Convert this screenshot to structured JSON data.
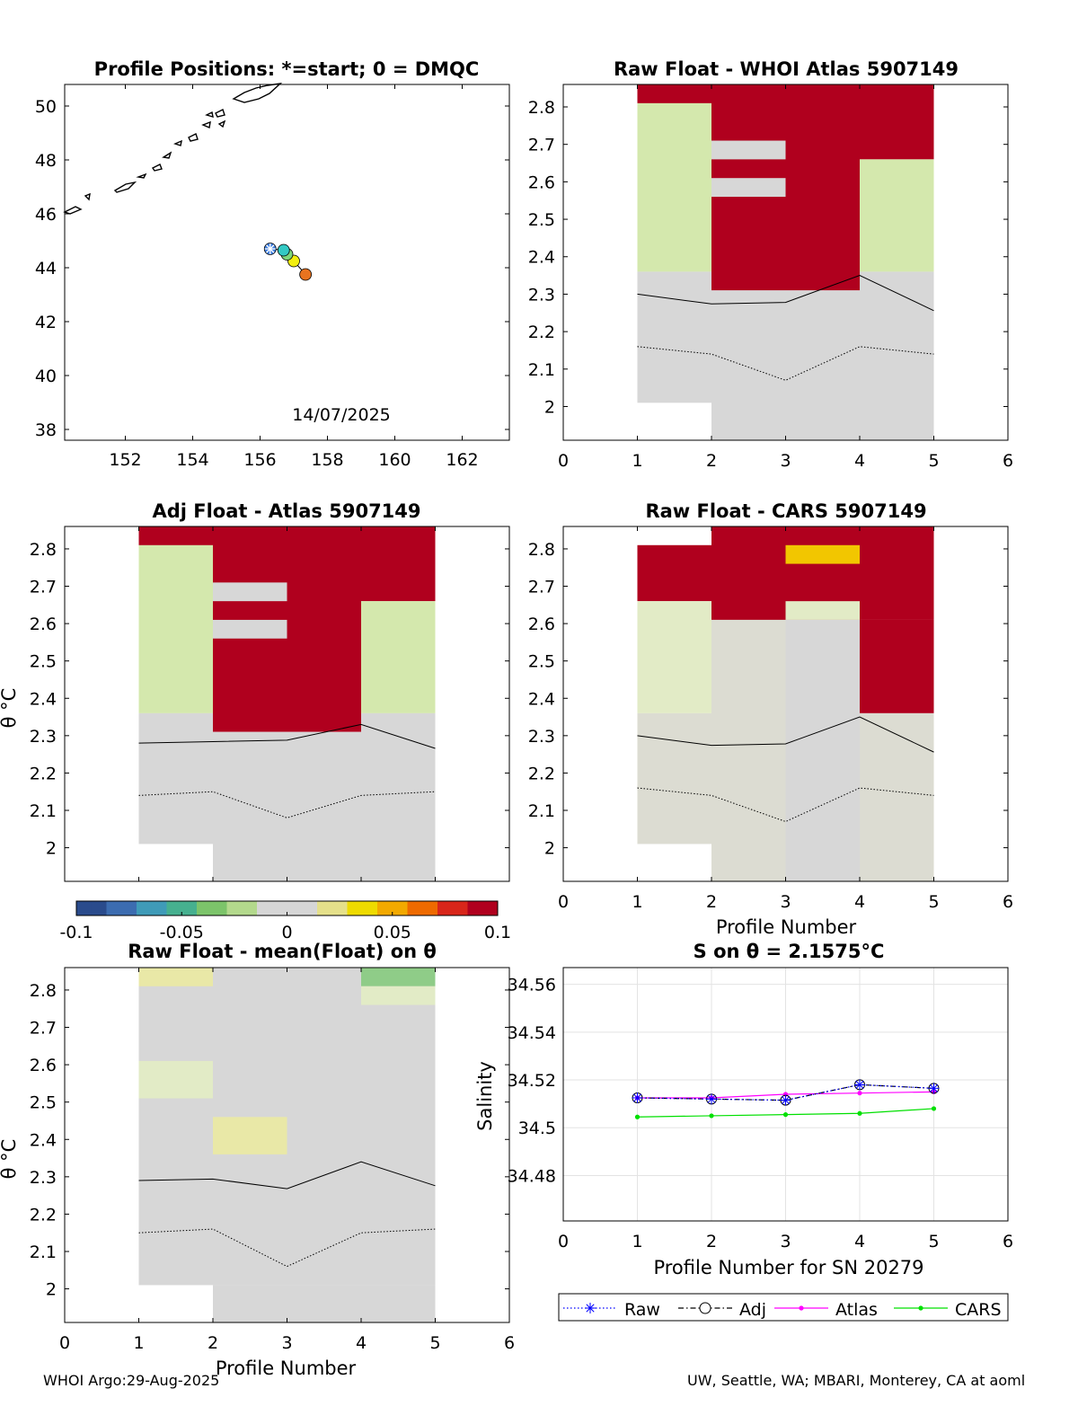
{
  "figure": {
    "footer_left": "WHOI Argo:29-Aug-2025",
    "footer_right": "UW, Seattle, WA; MBARI, Monterey, CA at aoml"
  },
  "colors": {
    "red": "#B0001E",
    "grey": "#D7D7D7",
    "lightgreen": "#D4E8AD",
    "paler": "#E2EBC6",
    "yellow": "#E9E8A7",
    "midgreen": "#8FCC88",
    "orange_yellow": "#F2C600",
    "beige": "#DCDCD2"
  },
  "chart_data": [
    {
      "id": "map",
      "type": "scatter",
      "title": "Profile Positions: *=start; 0 = DMQC",
      "xlim": [
        150.2,
        163.4
      ],
      "ylim": [
        37.6,
        50.8
      ],
      "xticks": [
        152,
        154,
        156,
        158,
        160,
        162
      ],
      "yticks": [
        38,
        40,
        42,
        44,
        46,
        48,
        50
      ],
      "annotation": "14/07/2025",
      "points": [
        {
          "lon": 156.3,
          "lat": 44.7,
          "color": "#3F7FE0",
          "marker": "star"
        },
        {
          "lon": 156.7,
          "lat": 44.65,
          "color": "#33C9C4",
          "marker": "circle"
        },
        {
          "lon": 156.8,
          "lat": 44.5,
          "color": "#7ED67A",
          "marker": "circle"
        },
        {
          "lon": 157.0,
          "lat": 44.25,
          "color": "#F2EE10",
          "marker": "circle"
        },
        {
          "lon": 157.35,
          "lat": 43.75,
          "color": "#E8731F",
          "marker": "circle"
        }
      ]
    },
    {
      "id": "raw_whoi",
      "type": "heatmap",
      "title": "Raw Float - WHOI Atlas  5907149",
      "xlim": [
        0,
        6
      ],
      "ylim": [
        1.91,
        2.86
      ],
      "xticks": [
        0,
        1,
        2,
        3,
        4,
        5,
        6
      ],
      "yticks": [
        "2",
        "2.1",
        "2.2",
        "2.3",
        "2.4",
        "2.5",
        "2.6",
        "2.7",
        "2.8"
      ],
      "cells": [
        {
          "x": [
            1,
            2
          ],
          "y": [
            2.76,
            2.86
          ],
          "c": "red"
        },
        {
          "x": [
            1,
            2
          ],
          "y": [
            2.36,
            2.81
          ],
          "c": "lightgreen"
        },
        {
          "x": [
            1,
            2
          ],
          "y": [
            2.01,
            2.36
          ],
          "c": "grey"
        },
        {
          "x": [
            2,
            4
          ],
          "y": [
            2.31,
            2.86
          ],
          "c": "red"
        },
        {
          "x": [
            2,
            3
          ],
          "y": [
            2.66,
            2.71
          ],
          "c": "grey"
        },
        {
          "x": [
            2,
            3
          ],
          "y": [
            2.56,
            2.61
          ],
          "c": "grey"
        },
        {
          "x": [
            2,
            4
          ],
          "y": [
            1.91,
            2.31
          ],
          "c": "grey"
        },
        {
          "x": [
            4,
            5
          ],
          "y": [
            2.66,
            2.86
          ],
          "c": "red"
        },
        {
          "x": [
            4,
            5
          ],
          "y": [
            2.36,
            2.66
          ],
          "c": "lightgreen"
        },
        {
          "x": [
            4,
            5
          ],
          "y": [
            1.91,
            2.36
          ],
          "c": "grey"
        }
      ]
    },
    {
      "id": "adj_atlas",
      "type": "heatmap",
      "title": "Adj Float - Atlas  5907149",
      "ylabel": "θ °C",
      "xlim": [
        0,
        6
      ],
      "ylim": [
        1.91,
        2.86
      ],
      "yticks": [
        "2",
        "2.1",
        "2.2",
        "2.3",
        "2.4",
        "2.5",
        "2.6",
        "2.7",
        "2.8"
      ],
      "cells": [
        {
          "x": [
            1,
            2
          ],
          "y": [
            2.76,
            2.86
          ],
          "c": "red"
        },
        {
          "x": [
            1,
            2
          ],
          "y": [
            2.36,
            2.81
          ],
          "c": "lightgreen"
        },
        {
          "x": [
            1,
            2
          ],
          "y": [
            2.01,
            2.36
          ],
          "c": "grey"
        },
        {
          "x": [
            2,
            4
          ],
          "y": [
            2.31,
            2.86
          ],
          "c": "red"
        },
        {
          "x": [
            2,
            3
          ],
          "y": [
            2.66,
            2.71
          ],
          "c": "grey"
        },
        {
          "x": [
            2,
            3
          ],
          "y": [
            2.56,
            2.61
          ],
          "c": "grey"
        },
        {
          "x": [
            2,
            4
          ],
          "y": [
            1.91,
            2.31
          ],
          "c": "grey"
        },
        {
          "x": [
            4,
            5
          ],
          "y": [
            2.66,
            2.86
          ],
          "c": "red"
        },
        {
          "x": [
            4,
            5
          ],
          "y": [
            2.36,
            2.66
          ],
          "c": "lightgreen"
        },
        {
          "x": [
            4,
            5
          ],
          "y": [
            1.91,
            2.36
          ],
          "c": "grey"
        }
      ]
    },
    {
      "id": "raw_cars",
      "type": "heatmap",
      "title": "Raw Float - CARS  5907149",
      "xlabel": "Profile Number",
      "xlim": [
        0,
        6
      ],
      "ylim": [
        1.91,
        2.86
      ],
      "xticks": [
        0,
        1,
        2,
        3,
        4,
        5,
        6
      ],
      "yticks": [
        "2",
        "2.1",
        "2.2",
        "2.3",
        "2.4",
        "2.5",
        "2.6",
        "2.7",
        "2.8"
      ],
      "cells": [
        {
          "x": [
            1,
            2
          ],
          "y": [
            2.66,
            2.81
          ],
          "c": "red"
        },
        {
          "x": [
            1,
            2
          ],
          "y": [
            2.36,
            2.66
          ],
          "c": "paler"
        },
        {
          "x": [
            1,
            2
          ],
          "y": [
            2.01,
            2.36
          ],
          "c": "beige"
        },
        {
          "x": [
            2,
            5
          ],
          "y": [
            2.61,
            2.86
          ],
          "c": "red"
        },
        {
          "x": [
            3,
            4
          ],
          "y": [
            2.76,
            2.81
          ],
          "c": "orange_yellow"
        },
        {
          "x": [
            3,
            4
          ],
          "y": [
            2.61,
            2.66
          ],
          "c": "paler"
        },
        {
          "x": [
            2,
            3
          ],
          "y": [
            1.91,
            2.61
          ],
          "c": "beige"
        },
        {
          "x": [
            3,
            4
          ],
          "y": [
            1.91,
            2.61
          ],
          "c": "grey"
        },
        {
          "x": [
            4,
            5
          ],
          "y": [
            2.36,
            2.61
          ],
          "c": "red"
        },
        {
          "x": [
            4,
            5
          ],
          "y": [
            1.91,
            2.36
          ],
          "c": "beige"
        }
      ]
    },
    {
      "id": "mean_theta",
      "type": "heatmap",
      "title": "Raw Float - mean(Float) on θ",
      "xlabel": "Profile Number",
      "ylabel": "θ °C",
      "xlim": [
        0,
        6
      ],
      "ylim": [
        1.91,
        2.86
      ],
      "xticks": [
        0,
        1,
        2,
        3,
        4,
        5,
        6
      ],
      "yticks": [
        "2",
        "2.1",
        "2.2",
        "2.3",
        "2.4",
        "2.5",
        "2.6",
        "2.7",
        "2.8"
      ],
      "cells": [
        {
          "x": [
            1,
            5
          ],
          "y": [
            2.01,
            2.86
          ],
          "c": "grey"
        },
        {
          "x": [
            2,
            5
          ],
          "y": [
            1.91,
            2.01
          ],
          "c": "grey"
        },
        {
          "x": [
            1,
            2
          ],
          "y": [
            2.81,
            2.86
          ],
          "c": "yellow"
        },
        {
          "x": [
            4,
            5
          ],
          "y": [
            2.81,
            2.86
          ],
          "c": "midgreen"
        },
        {
          "x": [
            4,
            5
          ],
          "y": [
            2.76,
            2.81
          ],
          "c": "paler"
        },
        {
          "x": [
            1,
            2
          ],
          "y": [
            2.51,
            2.61
          ],
          "c": "paler"
        },
        {
          "x": [
            2,
            3
          ],
          "y": [
            2.36,
            2.46
          ],
          "c": "yellow"
        }
      ]
    },
    {
      "id": "salinity",
      "type": "line",
      "title": "S on θ = 2.1575°C",
      "xlabel": "Profile Number for SN 20279",
      "ylabel": "Salinity",
      "xlim": [
        0,
        6
      ],
      "ylim": [
        34.461,
        34.567
      ],
      "xticks": [
        0,
        1,
        2,
        3,
        4,
        5,
        6
      ],
      "yticks": [
        "34.48",
        "34.5",
        "34.52",
        "34.54",
        "34.56"
      ],
      "x": [
        1,
        2,
        3,
        4,
        5
      ],
      "series": [
        {
          "name": "Raw",
          "values": [
            34.5125,
            34.512,
            34.5115,
            34.518,
            34.5165
          ],
          "color": "#0000FF"
        },
        {
          "name": "Adj",
          "values": [
            34.5125,
            34.512,
            34.5115,
            34.518,
            34.5165
          ],
          "color": "#000000"
        },
        {
          "name": "Atlas",
          "values": [
            34.5125,
            34.5125,
            34.514,
            34.5145,
            34.515
          ],
          "color": "#FF00FF"
        },
        {
          "name": "CARS",
          "values": [
            34.5045,
            34.505,
            34.5055,
            34.506,
            34.508
          ],
          "color": "#00E000"
        }
      ]
    },
    {
      "id": "colorbar",
      "type": "colorbar",
      "range": [
        -0.1,
        0.1
      ],
      "tick_labels": [
        "-0.1",
        "-0.05",
        "0",
        "0.05",
        "0.1"
      ]
    }
  ]
}
